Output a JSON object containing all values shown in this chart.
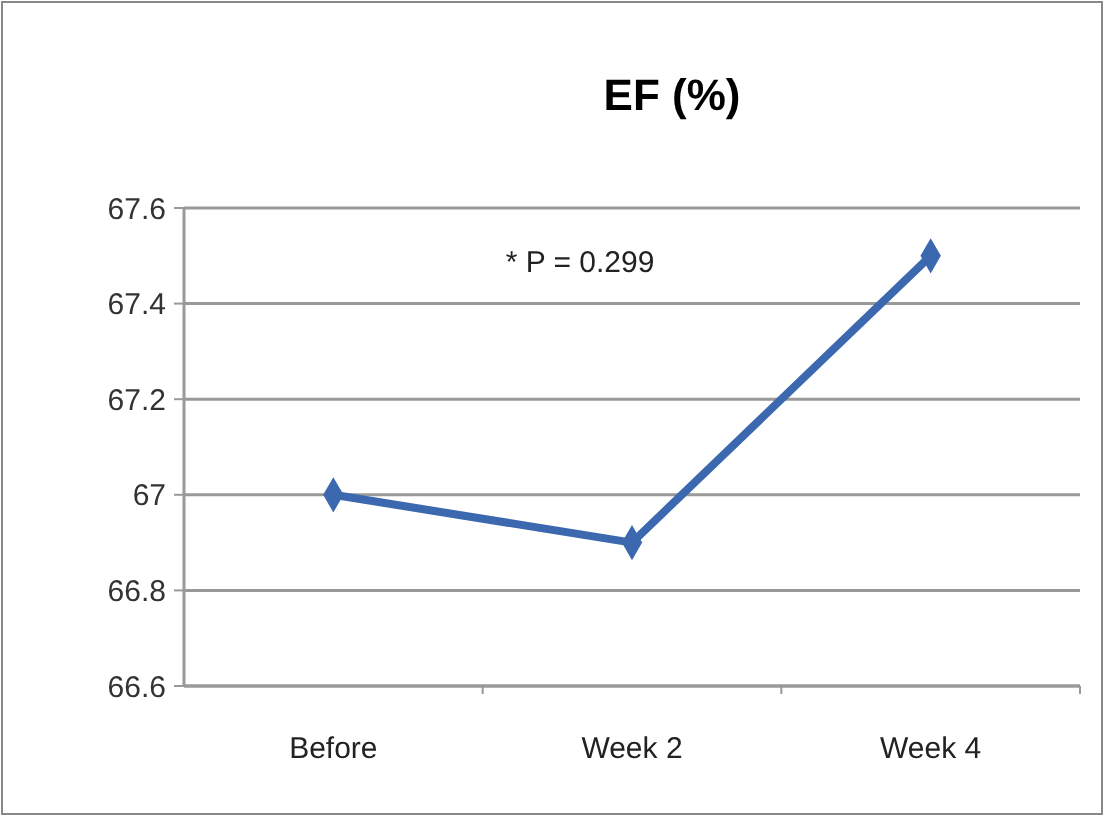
{
  "chart_data": {
    "type": "line",
    "title": "EF (%)",
    "categories": [
      "Before",
      "Week 2",
      "Week 4"
    ],
    "series": [
      {
        "color": "#3b68ae",
        "values": [
          67,
          66.9,
          67.5
        ]
      }
    ],
    "ylim": [
      66.6,
      67.6
    ],
    "yticks": [
      66.6,
      66.8,
      67,
      67.2,
      67.4,
      67.6
    ],
    "grid": "y",
    "marker": "diamond",
    "line_style": "solid",
    "annotations": [
      "* P = 0.299"
    ]
  }
}
